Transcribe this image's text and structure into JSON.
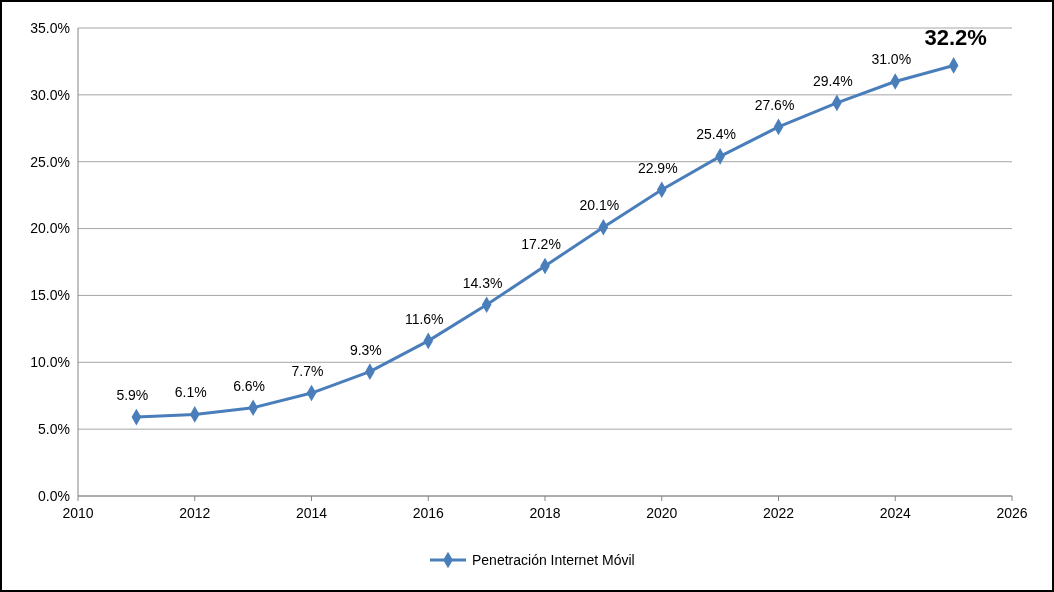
{
  "chart_data": {
    "type": "line",
    "x": [
      2011,
      2012,
      2013,
      2014,
      2015,
      2016,
      2017,
      2018,
      2019,
      2020,
      2021,
      2022,
      2023,
      2024,
      2025
    ],
    "series": [
      {
        "name": "Penetración Internet Móvil",
        "color": "#4a7ebb",
        "values": [
          5.9,
          6.1,
          6.6,
          7.7,
          9.3,
          11.6,
          14.3,
          17.2,
          20.1,
          22.9,
          25.4,
          27.6,
          29.4,
          31.0,
          32.2
        ],
        "value_labels": [
          "5.9%",
          "6.1%",
          "6.6%",
          "7.7%",
          "9.3%",
          "11.6%",
          "14.3%",
          "17.2%",
          "20.1%",
          "22.9%",
          "25.4%",
          "27.6%",
          "29.4%",
          "31.0%",
          "32.2%"
        ]
      }
    ],
    "xlim": [
      2010,
      2026
    ],
    "xticks": [
      2010,
      2012,
      2014,
      2016,
      2018,
      2020,
      2022,
      2024,
      2026
    ],
    "ylim": [
      0,
      35
    ],
    "yticks": [
      {
        "value": 0,
        "label": "0.0%"
      },
      {
        "value": 5,
        "label": "5.0%"
      },
      {
        "value": 10,
        "label": "10.0%"
      },
      {
        "value": 15,
        "label": "15.0%"
      },
      {
        "value": 20,
        "label": "20.0%"
      },
      {
        "value": 25,
        "label": "25.0%"
      },
      {
        "value": 30,
        "label": "30.0%"
      },
      {
        "value": 35,
        "label": "35.0%"
      }
    ],
    "grid": "y",
    "legend": "bottom",
    "marker": "diamond",
    "line_style": "solid"
  }
}
